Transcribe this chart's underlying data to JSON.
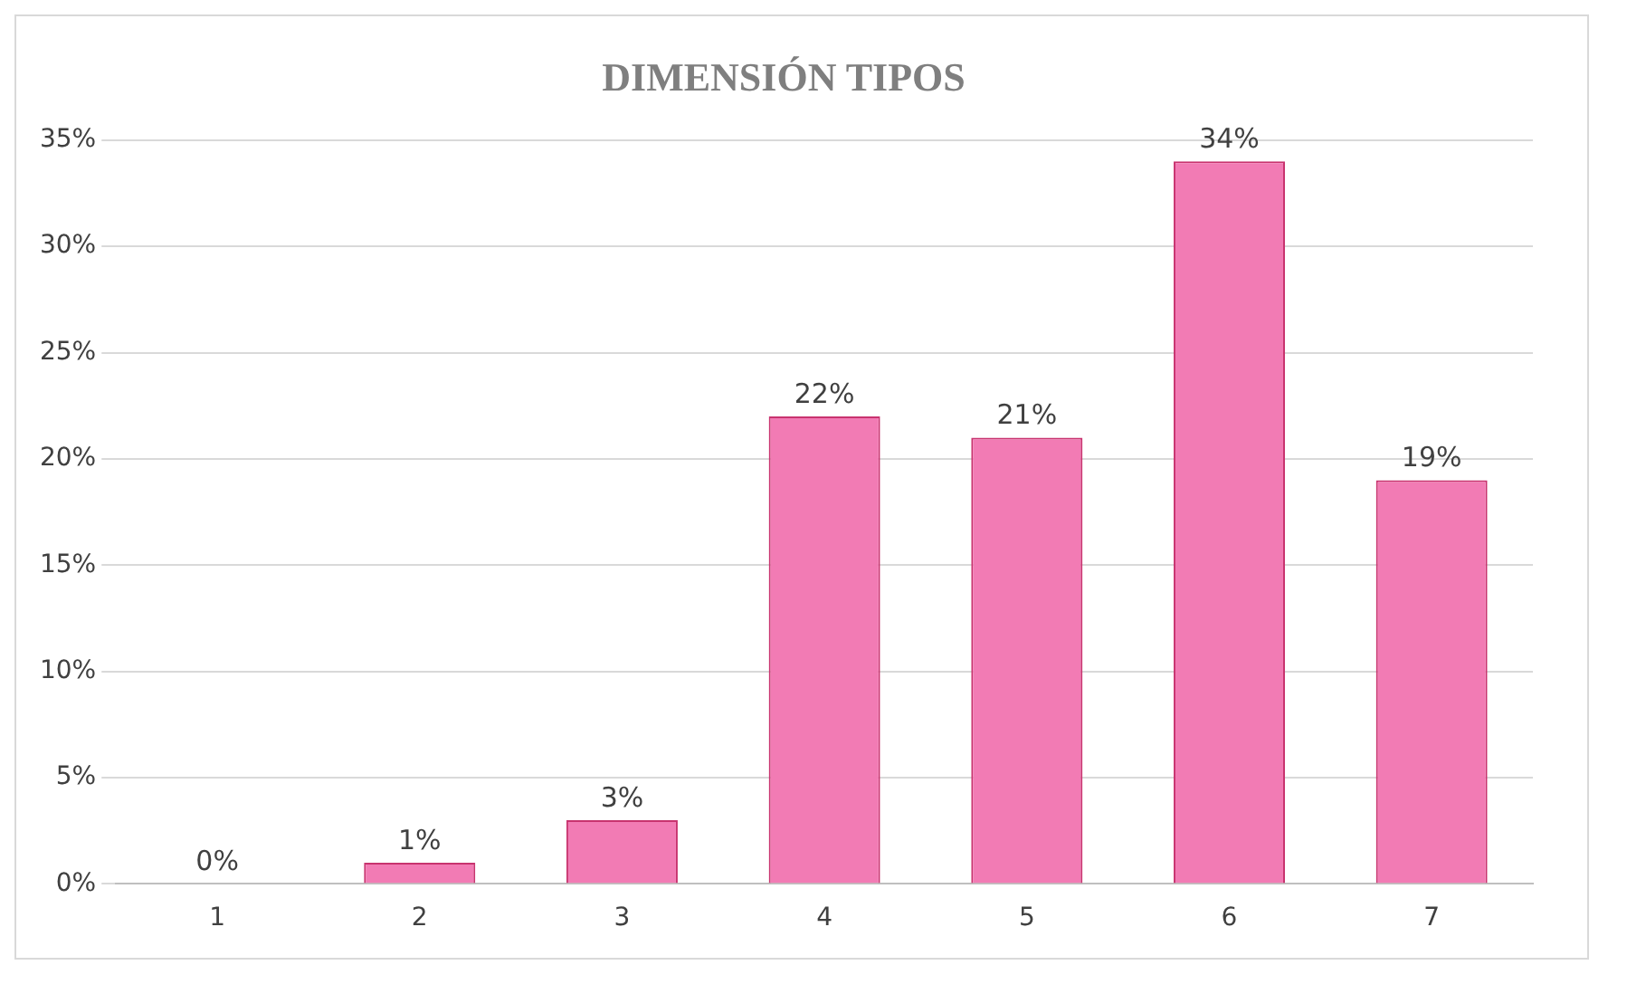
{
  "chart_data": {
    "type": "bar",
    "title": "DIMENSIÓN TIPOS",
    "categories": [
      "1",
      "2",
      "3",
      "4",
      "5",
      "6",
      "7"
    ],
    "values": [
      0,
      1,
      3,
      22,
      21,
      34,
      19
    ],
    "value_labels": [
      "0%",
      "1%",
      "3%",
      "22%",
      "21%",
      "34%",
      "19%"
    ],
    "color": "#f27bb4",
    "ylim": [
      0,
      35
    ],
    "yticks": [
      {
        "value": 0,
        "label": "0%"
      },
      {
        "value": 5,
        "label": "5%"
      },
      {
        "value": 10,
        "label": "10%"
      },
      {
        "value": 15,
        "label": "15%"
      },
      {
        "value": 20,
        "label": "20%"
      },
      {
        "value": 25,
        "label": "25%"
      },
      {
        "value": 30,
        "label": "30%"
      },
      {
        "value": 35,
        "label": "35%"
      }
    ],
    "grid": "y",
    "legend": false
  }
}
